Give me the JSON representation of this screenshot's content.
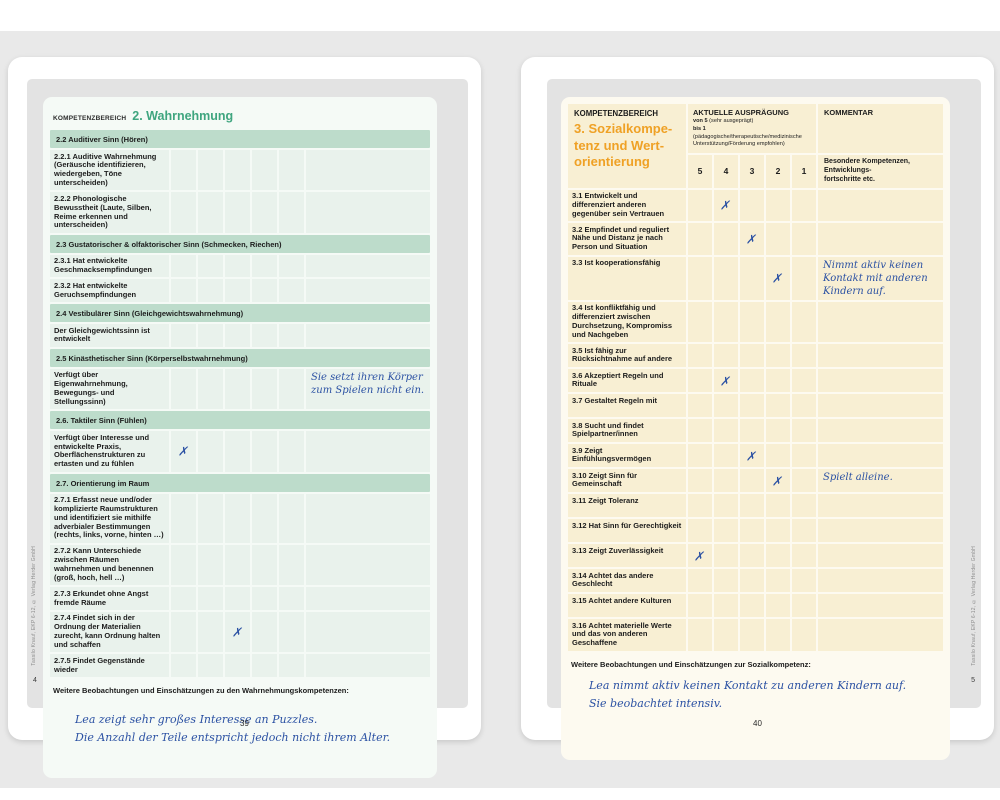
{
  "colors": {
    "page_bg": "#ffffff",
    "canvas_gray": "#e9e9e9",
    "facsimile_gray": "#e3e3e3",
    "form_green_bg": "#f5faf6",
    "cell_green": "#e9f2ec",
    "bar_green": "#bddccb",
    "title_green": "#3fa57f",
    "form_cream_bg": "#fdfaf0",
    "cell_cream": "#f8efd3",
    "title_orange": "#efa125",
    "handwriting_blue": "#2b51a3",
    "text_dark": "#1c1c1c"
  },
  "marks": {
    "glyph": "✗"
  },
  "credit": "Tassilo Knauf, EKP 6-12, © Verlag Herder GmbH",
  "left_page": {
    "header": {
      "label": "KOMPETENZBEREICH",
      "title": "2. Wahrnehmung"
    },
    "sections": [
      {
        "header": "2.2 Auditiver Sinn (Hören)",
        "rows": [
          {
            "label": "2.2.1 Auditive Wahrnehmung (Geräusche identifizieren, wiedergeben, Töne unterscheiden)",
            "mark": null,
            "comment": null
          },
          {
            "label": "2.2.2 Phonologische Bewusstheit (Laute, Silben, Reime erkennen und unterscheiden)",
            "mark": null,
            "comment": null
          }
        ]
      },
      {
        "header": "2.3 Gustatorischer & olfaktorischer Sinn (Schmecken, Riechen)",
        "rows": [
          {
            "label": "2.3.1 Hat entwickelte Geschmacksempfindungen",
            "mark": null,
            "comment": null
          },
          {
            "label": "2.3.2 Hat entwickelte Geruchsempfindungen",
            "mark": null,
            "comment": null
          }
        ]
      },
      {
        "header": "2.4 Vestibulärer Sinn (Gleichgewichtswahrnehmung)",
        "rows": [
          {
            "label": "Der Gleichgewichtssinn ist entwickelt",
            "mark": null,
            "comment": null
          }
        ]
      },
      {
        "header": "2.5 Kinästhetischer Sinn (Körperselbstwahrnehmung)",
        "rows": [
          {
            "label": "Verfügt über Eigenwahrnehmung, Bewegungs- und Stellungssinn)",
            "mark": null,
            "comment": "Sie setzt ihren Körper zum Spielen nicht ein."
          }
        ]
      },
      {
        "header": "2.6. Taktiler Sinn (Fühlen)",
        "rows": [
          {
            "label": "Verfügt über Interesse und entwickelte Praxis, Oberflächenstrukturen zu ertasten und zu fühlen",
            "mark": 5,
            "comment": null
          }
        ]
      },
      {
        "header": "2.7. Orientierung im Raum",
        "rows": [
          {
            "label": "2.7.1 Erfasst neue und/oder komplizierte Raumstrukturen und identifiziert sie mithilfe adverbialer Bestimmungen (rechts, links, vorne, hinten …)",
            "mark": null,
            "comment": null
          },
          {
            "label": "2.7.2 Kann Unterschiede zwischen Räumen wahrnehmen und benennen (groß, hoch, hell …)",
            "mark": null,
            "comment": null
          },
          {
            "label": "2.7.3 Erkundet ohne Angst fremde Räume",
            "mark": null,
            "comment": null
          },
          {
            "label": "2.7.4 Findet sich in der Ordnung der Materialien zurecht, kann Ordnung halten und schaffen",
            "mark": 3,
            "comment": null
          },
          {
            "label": "2.7.5 Findet Gegenstände wieder",
            "mark": null,
            "comment": null
          }
        ]
      }
    ],
    "footer": {
      "label": "Weitere Beobachtungen und Einschätzungen zu den Wahrnehmungskompetenzen:",
      "note": "Lea zeigt sehr großes Interesse an Puzzles.\nDie Anzahl der Teile entspricht jedoch nicht ihrem Alter."
    },
    "sheet_number": "4",
    "page_number": "39"
  },
  "right_page": {
    "header": {
      "label": "KOMPETENZBEREICH",
      "title": "3. Sozialkompe-\ntenz und Wert-\norientierung",
      "rating_title": "AKTUELLE AUSPRÄGUNG",
      "rating_from_bold": "von 5",
      "rating_from_rest": " (sehr ausgeprägt)",
      "rating_to_bold": "bis 1",
      "rating_to_rest": " (pädagogische/therapeutische/medizinische Unterstützung/Förderung empfohlen)",
      "comment_title": "KOMMENTAR",
      "scale": [
        "5",
        "4",
        "3",
        "2",
        "1"
      ],
      "comment_sub": "Besondere Kompetenzen, Entwicklungs-\nfortschritte etc."
    },
    "rows": [
      {
        "label": "3.1 Entwickelt und differenziert anderen gegenüber sein Vertrauen",
        "mark": 4,
        "comment": null
      },
      {
        "label": "3.2 Empfindet und reguliert Nähe und Distanz je nach Person und Situation",
        "mark": 3,
        "comment": null
      },
      {
        "label": "3.3 Ist kooperationsfähig",
        "mark": 2,
        "comment": "Nimmt aktiv keinen Kontakt mit anderen Kindern auf."
      },
      {
        "label": "3.4 Ist konfliktfähig und differenziert zwischen Durchsetzung, Kompromiss und Nachgeben",
        "mark": null,
        "comment": null
      },
      {
        "label": "3.5 Ist fähig zur Rücksichtnahme auf andere",
        "mark": null,
        "comment": null
      },
      {
        "label": "3.6 Akzeptiert Regeln und Rituale",
        "mark": 4,
        "comment": null
      },
      {
        "label": "3.7 Gestaltet Regeln mit",
        "mark": null,
        "comment": null
      },
      {
        "label": "3.8 Sucht und findet Spielpartner/innen",
        "mark": null,
        "comment": null
      },
      {
        "label": "3.9 Zeigt Einfühlungsvermögen",
        "mark": 3,
        "comment": null
      },
      {
        "label": "3.10 Zeigt Sinn für Gemeinschaft",
        "mark": 2,
        "comment": "Spielt alleine."
      },
      {
        "label": "3.11 Zeigt Toleranz",
        "mark": null,
        "comment": null
      },
      {
        "label": "3.12 Hat Sinn für Gerechtigkeit",
        "mark": null,
        "comment": null
      },
      {
        "label": "3.13 Zeigt Zuverlässigkeit",
        "mark": 5,
        "comment": null
      },
      {
        "label": "3.14 Achtet das andere Geschlecht",
        "mark": null,
        "comment": null
      },
      {
        "label": "3.15 Achtet andere Kulturen",
        "mark": null,
        "comment": null
      },
      {
        "label": "3.16 Achtet materielle Werte und das von anderen Geschaffene",
        "mark": null,
        "comment": null
      }
    ],
    "footer": {
      "label": "Weitere Beobachtungen und Einschätzungen zur Sozialkompetenz:",
      "note": "Lea nimmt aktiv keinen Kontakt zu anderen Kindern auf.\nSie beobachtet intensiv."
    },
    "sheet_number": "5",
    "page_number": "40"
  }
}
